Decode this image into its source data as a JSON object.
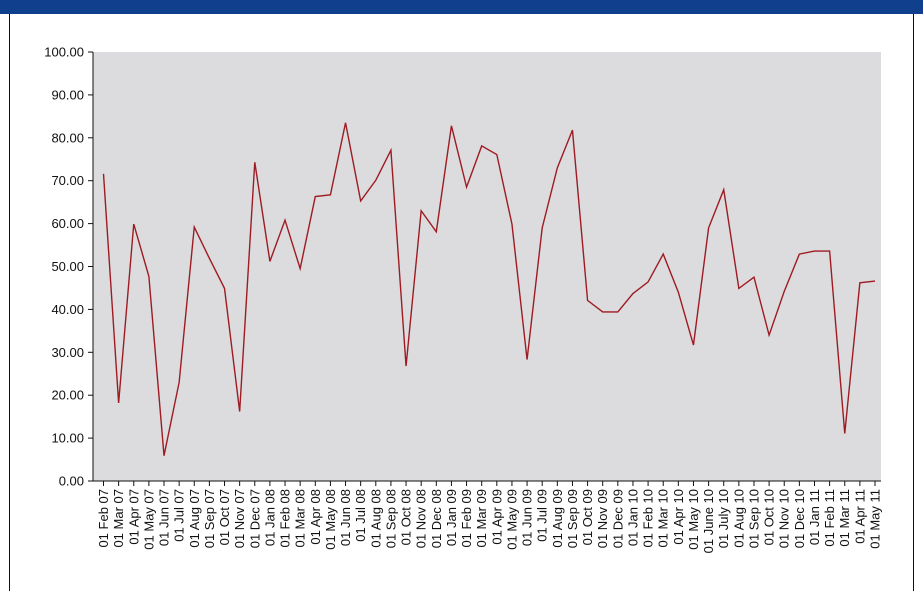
{
  "colors": {
    "header": "#0f3f8d",
    "plot_bg": "#dcdcde",
    "line": "#9e1b22",
    "frame": "#111111"
  },
  "chart_data": {
    "type": "line",
    "title": "",
    "xlabel": "",
    "ylabel": "",
    "ylim": [
      0,
      100
    ],
    "yticks": [
      "0.00",
      "10.00",
      "20.00",
      "30.00",
      "40.00",
      "50.00",
      "60.00",
      "70.00",
      "80.00",
      "90.00",
      "100.00"
    ],
    "grid": false,
    "legend": "none",
    "categories": [
      "01 Feb 07",
      "01 Mar 07",
      "01 Apr 07",
      "01 May 07",
      "01 Jun 07",
      "01 Jul 07",
      "01 Aug 07",
      "01 Sep 07",
      "01 Oct 07",
      "01 Nov 07",
      "01 Dec 07",
      "01 Jan 08",
      "01 Feb 08",
      "01 Mar 08",
      "01 Apr 08",
      "01 May 08",
      "01 Jun 08",
      "01 Jul 08",
      "01 Aug 08",
      "01 Sep 08",
      "01 Oct 08",
      "01 Nov 08",
      "01 Dec 08",
      "01 Jan 09",
      "01 Feb 09",
      "01 Mar 09",
      "01 Apr 09",
      "01 May 09",
      "01 Jun 09",
      "01 Jul 09",
      "01 Aug 09",
      "01 Sep 09",
      "01 Oct 09",
      "01 Nov 09",
      "01 Dec 09",
      "01 Jan 10",
      "01 Feb 10",
      "01 Mar 10",
      "01 Apr 10",
      "01 May 10",
      "01 June 10",
      "01 July 10",
      "01 Aug 10",
      "01 Sep 10",
      "01 Oct 10",
      "01 Nov 10",
      "01 Dec 10",
      "01 Jan 11",
      "01 Feb 11",
      "01 Mar 11",
      "01 Apr 11",
      "01 May 11"
    ],
    "series": [
      {
        "values": [
          71.6,
          18.2,
          59.9,
          47.7,
          5.9,
          23.0,
          59.2,
          51.9,
          44.9,
          16.2,
          74.3,
          51.2,
          60.8,
          49.5,
          66.3,
          66.7,
          83.5,
          65.3,
          70.1,
          77.1,
          26.8,
          63.0,
          58.1,
          82.8,
          68.5,
          78.1,
          76.1,
          59.9,
          28.3,
          59.0,
          73.0,
          81.8,
          42.1,
          39.4,
          39.4,
          43.7,
          46.4,
          52.9,
          44.0,
          31.7,
          59.0,
          67.9,
          44.9,
          47.5,
          34.0,
          44.2,
          52.9,
          53.6,
          53.6,
          11.1,
          46.2,
          46.6
        ]
      }
    ]
  }
}
